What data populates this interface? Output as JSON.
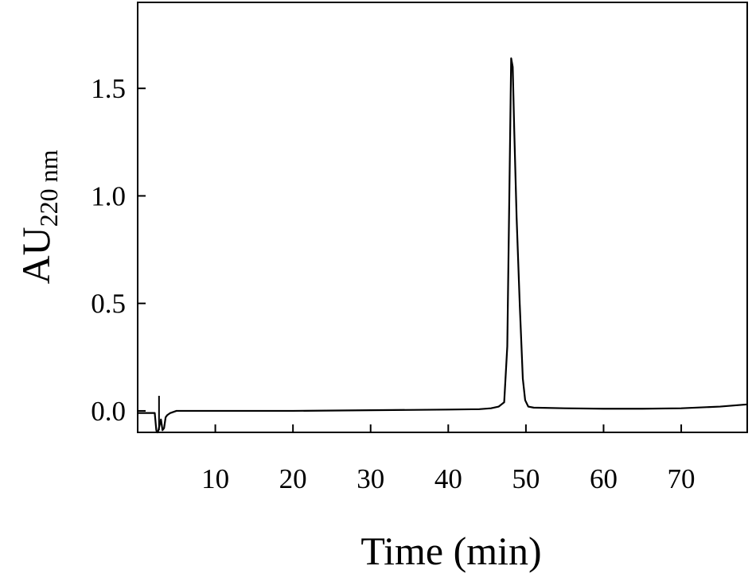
{
  "chart_data": {
    "type": "line",
    "title": "",
    "xlabel": "Time (min)",
    "ylabel_main": "AU",
    "ylabel_sub": "220 nm",
    "xlim": [
      0,
      78.5
    ],
    "ylim": [
      -0.1,
      1.9
    ],
    "xticks": [
      10,
      20,
      30,
      40,
      50,
      60,
      70
    ],
    "yticks": [
      0.0,
      0.5,
      1.0,
      1.5
    ],
    "ytick_labels": [
      "0.0",
      "0.5",
      "1.0",
      "1.5"
    ],
    "grid": false,
    "legend": "none",
    "line_color": "#000000",
    "series": [
      {
        "x": [
          0,
          1.2,
          2.2,
          2.4,
          2.5,
          2.6,
          2.8,
          3.0,
          3.2,
          3.4,
          3.6,
          3.8,
          4.2,
          5.0,
          10,
          20,
          30,
          40,
          44,
          45.5,
          46.5,
          47.2,
          47.6,
          47.9,
          48.1,
          48.3,
          48.5,
          48.8,
          49.2,
          49.6,
          49.9,
          50.3,
          51,
          55,
          60,
          65,
          70,
          75,
          78.5
        ],
        "y": [
          -0.01,
          -0.01,
          -0.01,
          -0.09,
          -0.1,
          -0.1,
          -0.07,
          -0.04,
          -0.09,
          -0.08,
          -0.03,
          -0.02,
          -0.01,
          0.0,
          0.0,
          0.0,
          0.003,
          0.006,
          0.008,
          0.012,
          0.02,
          0.04,
          0.3,
          1.1,
          1.64,
          1.6,
          1.3,
          0.9,
          0.5,
          0.15,
          0.05,
          0.02,
          0.015,
          0.012,
          0.01,
          0.01,
          0.012,
          0.02,
          0.03
        ]
      }
    ]
  }
}
